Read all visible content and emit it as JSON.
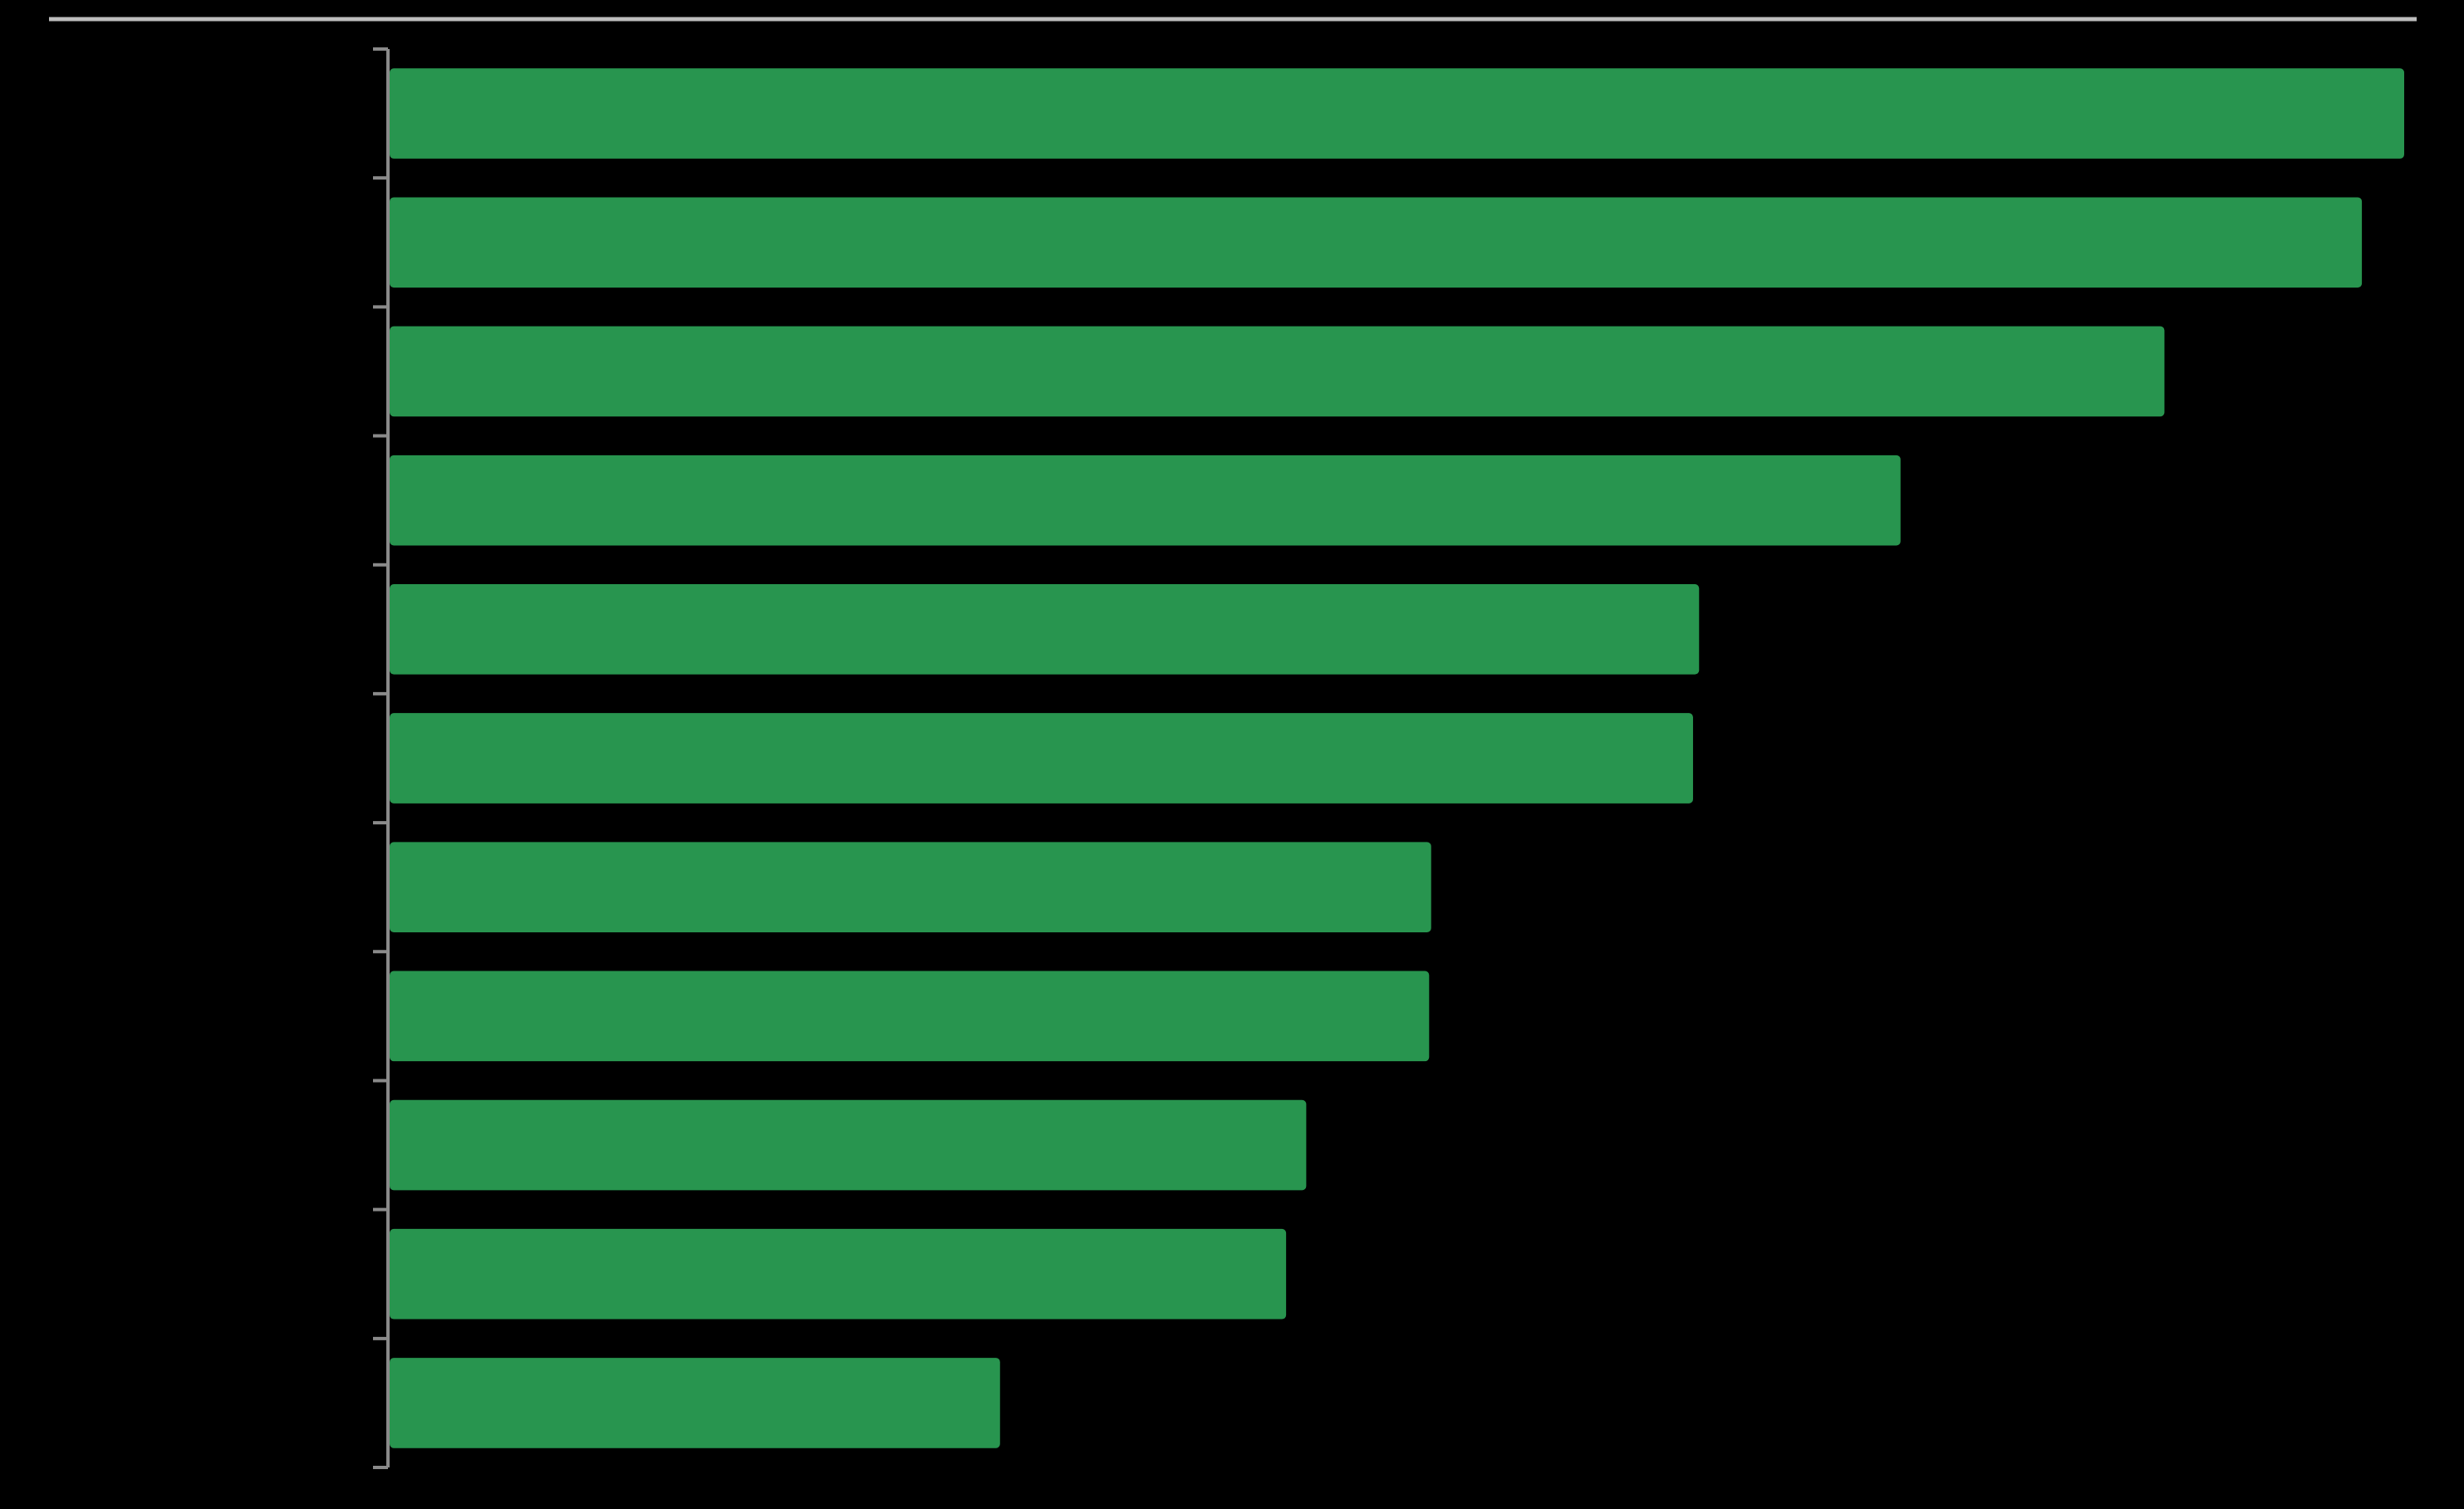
{
  "chart_data": {
    "type": "barh",
    "categories": [
      null,
      null,
      null,
      null,
      null,
      null,
      null,
      null,
      null,
      null,
      null
    ],
    "values": [
      100,
      97.9,
      88.1,
      75.0,
      65.0,
      64.7,
      51.7,
      51.6,
      45.5,
      44.5,
      30.3
    ],
    "color": "#28954f",
    "xlim": [
      0,
      100
    ]
  }
}
